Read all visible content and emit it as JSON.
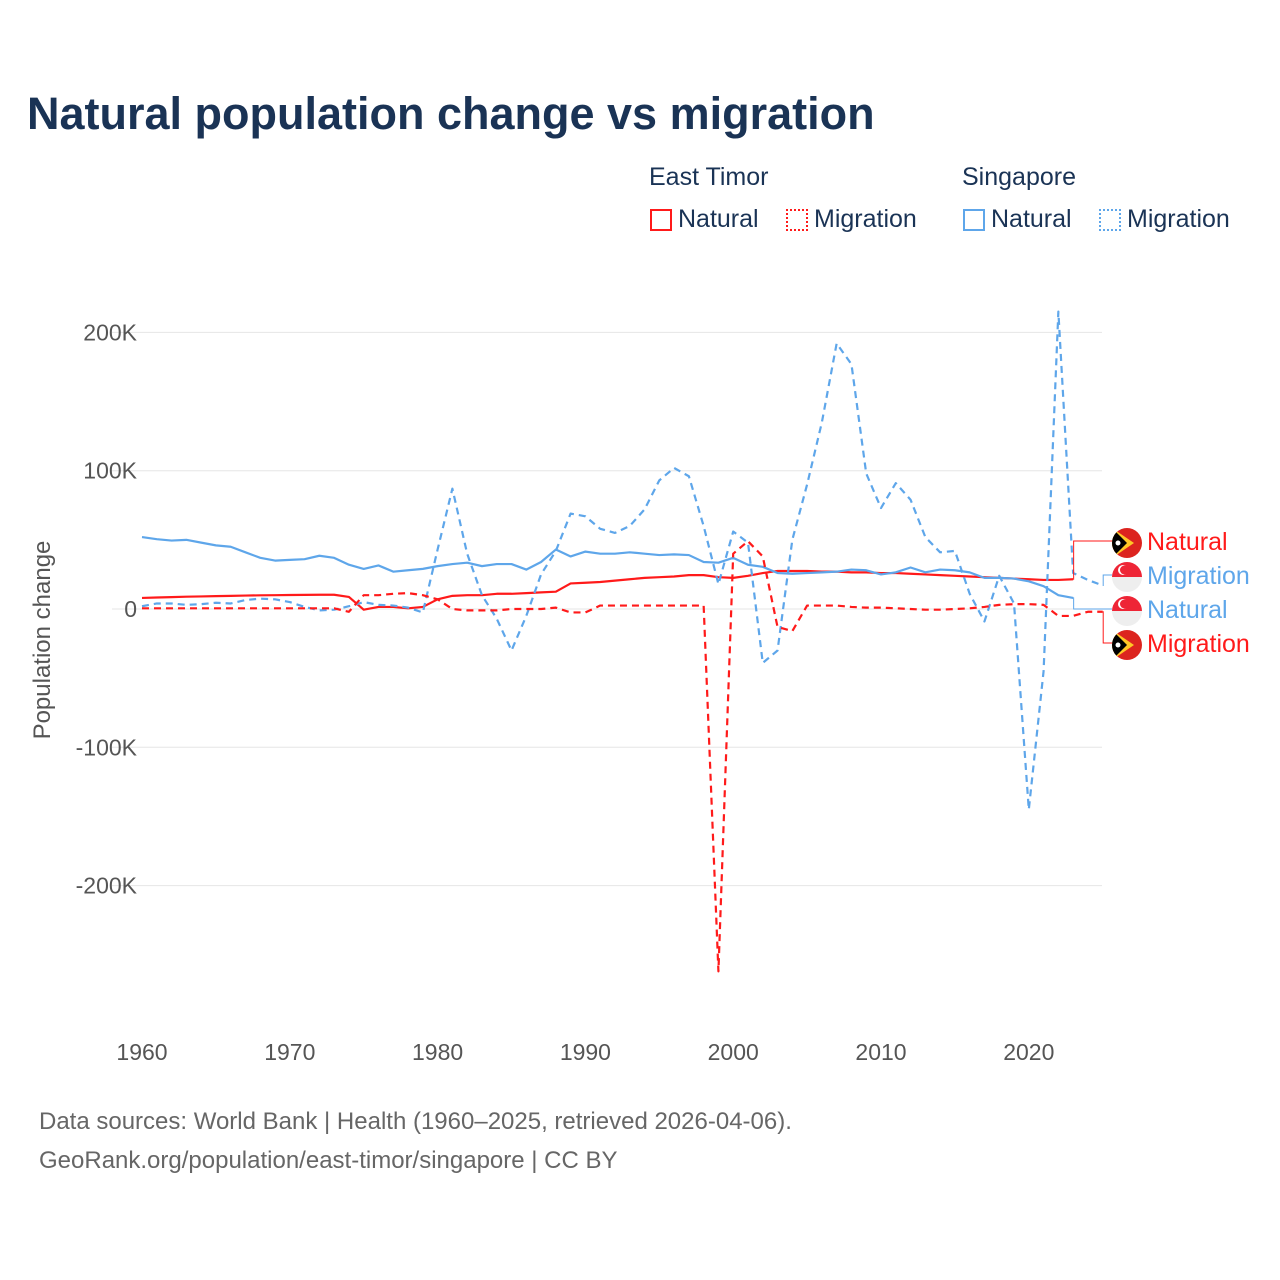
{
  "title": "Natural population change vs migration",
  "legend": {
    "groups": [
      {
        "name": "East Timor",
        "natural": "Natural",
        "migration": "Migration"
      },
      {
        "name": "Singapore",
        "natural": "Natural",
        "migration": "Migration"
      }
    ]
  },
  "colors": {
    "east_timor": "#ff1a1a",
    "singapore": "#5ea6ea",
    "title": "#1a3355"
  },
  "footer": {
    "line1": "Data sources: World Bank | Health (1960–2025, retrieved 2026-04-06).",
    "line2": "GeoRank.org/population/east-timor/singapore | CC BY"
  },
  "chart_data": {
    "type": "line",
    "title": "Natural population change vs migration",
    "xlabel": "",
    "ylabel": "Population change",
    "xlim": [
      1960,
      2025
    ],
    "ylim": [
      -270000,
      230000
    ],
    "x_ticks": [
      1960,
      1970,
      1980,
      1990,
      2000,
      2010,
      2020
    ],
    "x_tick_labels": [
      "1960",
      "1970",
      "1980",
      "1990",
      "2000",
      "2010",
      "2020"
    ],
    "y_ticks": [
      200000,
      100000,
      0,
      -100000,
      -200000
    ],
    "y_tick_labels": [
      "200K",
      "100K",
      "0",
      "-100K",
      "-200K"
    ],
    "grid": true,
    "series": [
      {
        "name": "East Timor Natural",
        "label": "Natural",
        "country": "east_timor",
        "dash": false,
        "start": 1960,
        "values_k": [
          8,
          8.3,
          8.6,
          8.9,
          9.1,
          9.3,
          9.5,
          9.7,
          9.9,
          10,
          10.1,
          10.2,
          10.3,
          10.3,
          8.7,
          -0.5,
          1.5,
          1.5,
          0.5,
          1.5,
          7,
          9.5,
          10,
          10,
          11,
          11,
          11.5,
          12,
          12.5,
          18.5,
          19,
          19.5,
          20.5,
          21.5,
          22.5,
          23,
          23.5,
          24.5,
          24.5,
          23,
          22.5,
          24,
          26,
          27.5,
          27.5,
          27.5,
          27,
          27,
          26.5,
          26.5,
          26,
          26,
          25.5,
          25,
          24.5,
          24,
          23.5,
          23,
          22.5,
          22,
          21.5,
          21,
          21,
          21.5
        ]
      },
      {
        "name": "Singapore Migration",
        "label": "Migration",
        "country": "singapore",
        "dash": true,
        "start": 1960,
        "values_k": [
          2,
          4,
          4,
          3,
          3.5,
          4.5,
          4,
          6.5,
          7.5,
          7,
          5,
          1.5,
          -1,
          -0.5,
          2,
          5,
          3,
          2.5,
          1,
          -2.5,
          43,
          87,
          40,
          10,
          -7,
          -30,
          -5,
          25,
          42,
          69,
          67,
          58,
          55,
          60,
          72,
          93,
          102,
          96,
          60,
          18,
          56,
          48,
          -39,
          -30,
          50,
          90,
          135,
          192,
          177,
          98,
          73,
          91,
          79,
          52,
          41,
          42,
          11,
          -9,
          24,
          4,
          -145,
          -45,
          215,
          26,
          21,
          17
        ]
      },
      {
        "name": "Singapore Natural",
        "label": "Natural",
        "country": "singapore",
        "dash": false,
        "start": 1960,
        "values_k": [
          52,
          50.5,
          49.5,
          50,
          48,
          46,
          45,
          41,
          37,
          35,
          35.5,
          36,
          38.5,
          37,
          32,
          29,
          31.5,
          27,
          28,
          29,
          31,
          32.5,
          33.5,
          31,
          32.5,
          32.5,
          28.5,
          34,
          43,
          38,
          41.5,
          40,
          40,
          41,
          40,
          39,
          39.5,
          39,
          34,
          33.5,
          37,
          32,
          30.5,
          26,
          25.5,
          26,
          26.5,
          27,
          28.5,
          28,
          25,
          26.5,
          30,
          26.5,
          28.5,
          28,
          26.5,
          22.5,
          22.5,
          22,
          20,
          16.5,
          10,
          8
        ]
      },
      {
        "name": "East Timor Migration",
        "label": "Migration",
        "country": "east_timor",
        "dash": true,
        "start": 1960,
        "values_k": [
          0.5,
          0.5,
          0.5,
          0.5,
          0.5,
          0.5,
          0.5,
          0.5,
          0.5,
          0.5,
          0.5,
          0.5,
          0.5,
          0.5,
          -2,
          10,
          10,
          11,
          11.5,
          10,
          7,
          0,
          -1,
          -1,
          -1,
          0,
          0,
          0,
          1,
          -2.5,
          -2.5,
          2.5,
          2.5,
          2.5,
          2.5,
          2.5,
          2.5,
          2.5,
          2.5,
          -262,
          40,
          49,
          38,
          -13,
          -16,
          2.5,
          2.5,
          2.5,
          1.5,
          1,
          1,
          0.5,
          0,
          -0.5,
          -0.5,
          0,
          0.5,
          1.5,
          3,
          3.5,
          3.5,
          3,
          -5,
          -5,
          -2,
          -2
        ]
      }
    ]
  }
}
